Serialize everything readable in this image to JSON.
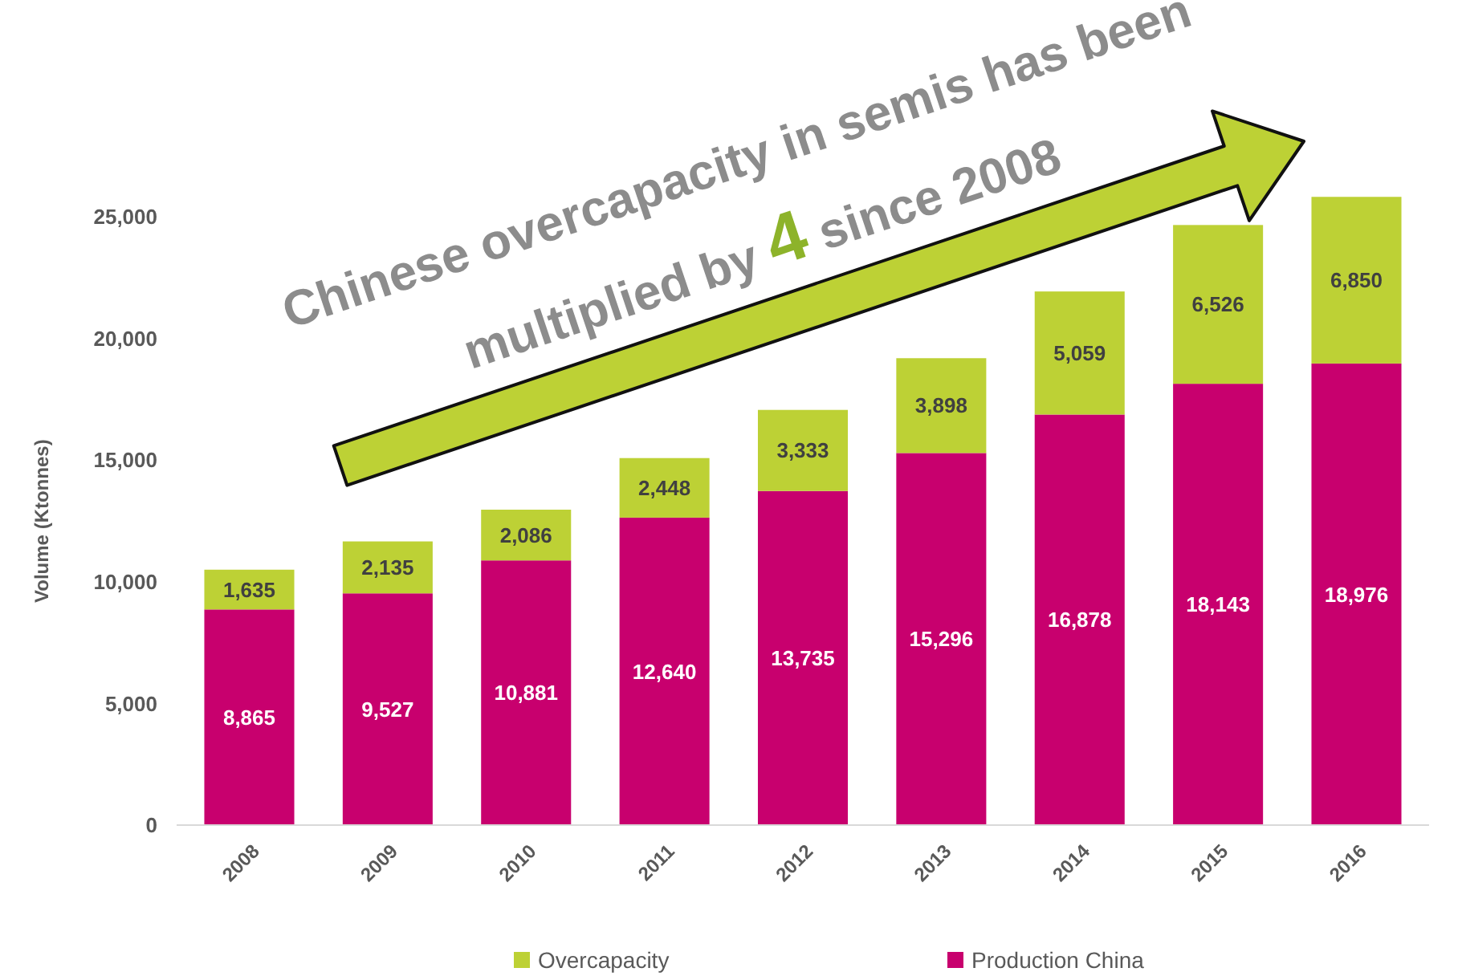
{
  "chart_data": {
    "type": "bar",
    "stacked": true,
    "ylabel": "Volume (Ktonnes)",
    "categories": [
      "2008",
      "2009",
      "2010",
      "2011",
      "2012",
      "2013",
      "2014",
      "2015",
      "2016"
    ],
    "series": [
      {
        "name": "Production China",
        "color": "#c8006e",
        "values": [
          8865,
          9527,
          10881,
          12640,
          13735,
          15296,
          16878,
          18143,
          18976
        ],
        "value_labels": [
          "8,865",
          "9,527",
          "10,881",
          "12,640",
          "13,735",
          "15,296",
          "16,878",
          "18,143",
          "18,976"
        ]
      },
      {
        "name": "Overcapacity",
        "color": "#bdd135",
        "values": [
          1635,
          2135,
          2086,
          2448,
          3333,
          3898,
          5059,
          6526,
          6850
        ],
        "value_labels": [
          "1,635",
          "2,135",
          "2,086",
          "2,448",
          "3,333",
          "3,898",
          "5,059",
          "6,526",
          "6,850"
        ]
      }
    ],
    "ylim": [
      0,
      26000
    ],
    "yticks": [
      {
        "value": 0,
        "label": "0"
      },
      {
        "value": 5000,
        "label": "5,000"
      },
      {
        "value": 10000,
        "label": "10,000"
      },
      {
        "value": 15000,
        "label": "15,000"
      },
      {
        "value": 20000,
        "label": "20,000"
      },
      {
        "value": 25000,
        "label": "25,000"
      }
    ],
    "grid": false,
    "legend": "bottom",
    "annotations": [
      "Chinese overcapacity in semis has been",
      "multiplied by 4 since 2008"
    ]
  }
}
